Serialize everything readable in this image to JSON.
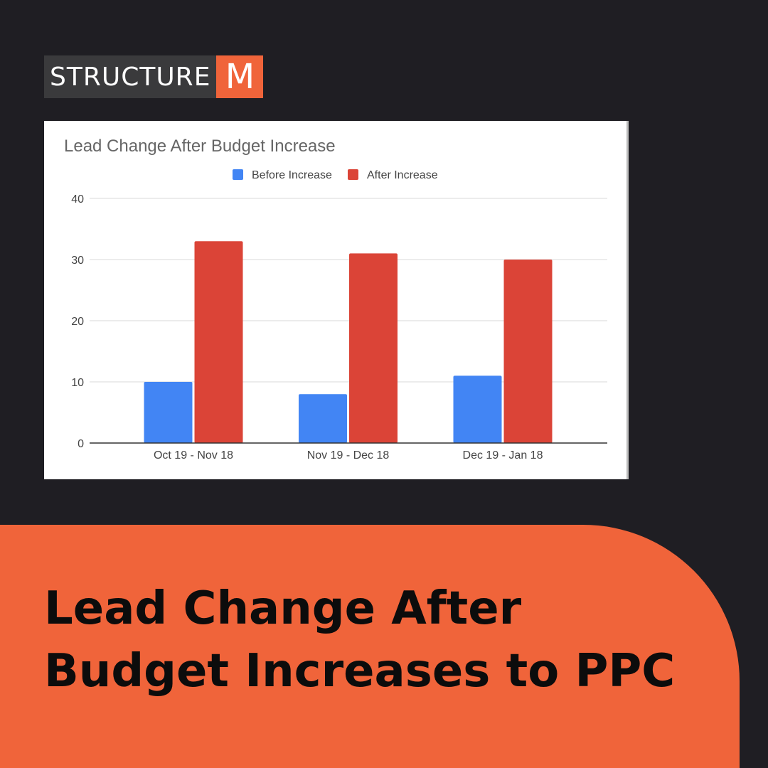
{
  "brand": {
    "word": "STRUCTURE",
    "mark": "M",
    "accent": "#f0643a"
  },
  "chart_data": {
    "type": "bar",
    "title": "Lead Change After Budget Increase",
    "categories": [
      "Oct 19 - Nov 18",
      "Nov 19 - Dec 18",
      "Dec 19 - Jan 18"
    ],
    "series": [
      {
        "name": "Before Increase",
        "color": "#4285f4",
        "values": [
          10,
          8,
          11
        ]
      },
      {
        "name": "After Increase",
        "color": "#db4437",
        "values": [
          33,
          31,
          30
        ]
      }
    ],
    "yticks": [
      0,
      10,
      20,
      30,
      40
    ],
    "ylim": [
      0,
      40
    ],
    "grid": true,
    "legend": "top-center"
  },
  "headline": {
    "line1": "Lead Change After",
    "line2": "Budget Increases to PPC"
  }
}
